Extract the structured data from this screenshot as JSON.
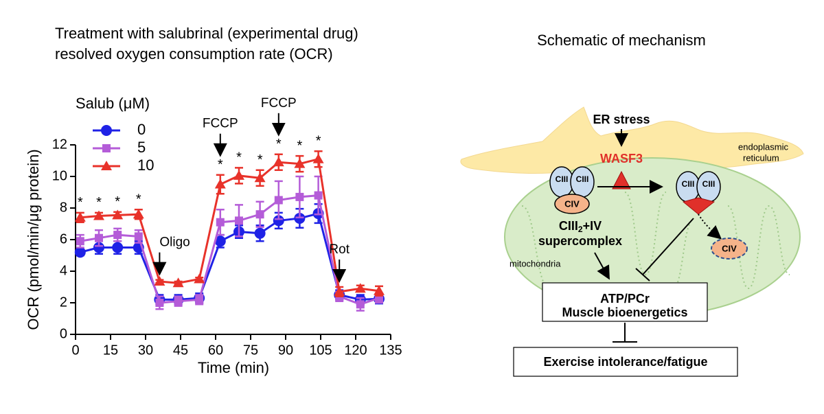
{
  "chart_data": {
    "type": "line",
    "title": [
      "Treatment with salubrinal (experimental drug)",
      "resolved oxygen consumption rate (OCR)"
    ],
    "xlabel": "Time (min)",
    "ylabel": "OCR (pmol/min/μg protein)",
    "legend_title": "Salub (μM)",
    "x": [
      2,
      10,
      18,
      27,
      36,
      44,
      53,
      62,
      70,
      79,
      87,
      96,
      104,
      113,
      122,
      130
    ],
    "series": [
      {
        "name": "0",
        "color": "#1f22e6",
        "marker": "circle",
        "values": [
          5.2,
          5.5,
          5.5,
          5.5,
          2.2,
          2.2,
          2.3,
          5.9,
          6.5,
          6.4,
          7.2,
          7.35,
          7.65,
          2.5,
          2.2,
          2.25
        ],
        "errors": [
          0.2,
          0.4,
          0.4,
          0.4,
          0.3,
          0.3,
          0.3,
          0.4,
          0.4,
          0.5,
          0.5,
          0.6,
          0.6,
          0.3,
          0.3,
          0.3
        ]
      },
      {
        "name": "5",
        "color": "#b45cd8",
        "marker": "square",
        "values": [
          5.9,
          6.1,
          6.3,
          6.2,
          2.0,
          2.1,
          2.2,
          7.1,
          7.2,
          7.6,
          8.5,
          8.7,
          8.8,
          2.4,
          1.9,
          2.3
        ],
        "errors": [
          0.4,
          0.5,
          0.4,
          0.4,
          0.4,
          0.3,
          0.3,
          0.8,
          1.0,
          0.8,
          1.2,
          1.3,
          1.2,
          0.3,
          0.4,
          0.3
        ]
      },
      {
        "name": "10",
        "color": "#e8322a",
        "marker": "triangle",
        "values": [
          7.4,
          7.5,
          7.55,
          7.6,
          3.35,
          3.25,
          3.5,
          9.5,
          10.05,
          9.9,
          10.9,
          10.8,
          11.1,
          2.7,
          2.9,
          2.75
        ],
        "errors": [
          0.3,
          0.2,
          0.2,
          0.3,
          0.1,
          0.1,
          0.1,
          0.6,
          0.5,
          0.5,
          0.5,
          0.5,
          0.5,
          0.3,
          0.2,
          0.3
        ]
      }
    ],
    "xlim": [
      0,
      135
    ],
    "xticks": [
      0,
      15,
      30,
      45,
      60,
      75,
      90,
      105,
      120,
      135
    ],
    "ylim": [
      0,
      12
    ],
    "yticks": [
      0,
      2,
      4,
      6,
      8,
      10,
      12
    ],
    "annotations": [
      {
        "label": "Oligo",
        "x": 36
      },
      {
        "label": "FCCP",
        "x": 62
      },
      {
        "label": "FCCP",
        "x": 87
      },
      {
        "label": "Rot",
        "x": 113
      }
    ],
    "significance_marker": "*",
    "significant_x": [
      2,
      10,
      18,
      27,
      62,
      70,
      79,
      87,
      96,
      104
    ]
  },
  "schematic": {
    "title": "Schematic of mechanism",
    "er_stress": "ER stress",
    "wasf3": "WASF3",
    "er_label": [
      "endoplasmic",
      "reticulum"
    ],
    "ciii": "CIII",
    "civ": "CIV",
    "supercomplex": {
      "base": "CIII",
      "sub": "2",
      "rest": "+IV",
      "line2": "supercomplex"
    },
    "mito_label": "mitochondria",
    "box1": [
      "ATP/PCr",
      "Muscle bioenergetics"
    ],
    "box2": "Exercise intolerance/fatigue"
  }
}
